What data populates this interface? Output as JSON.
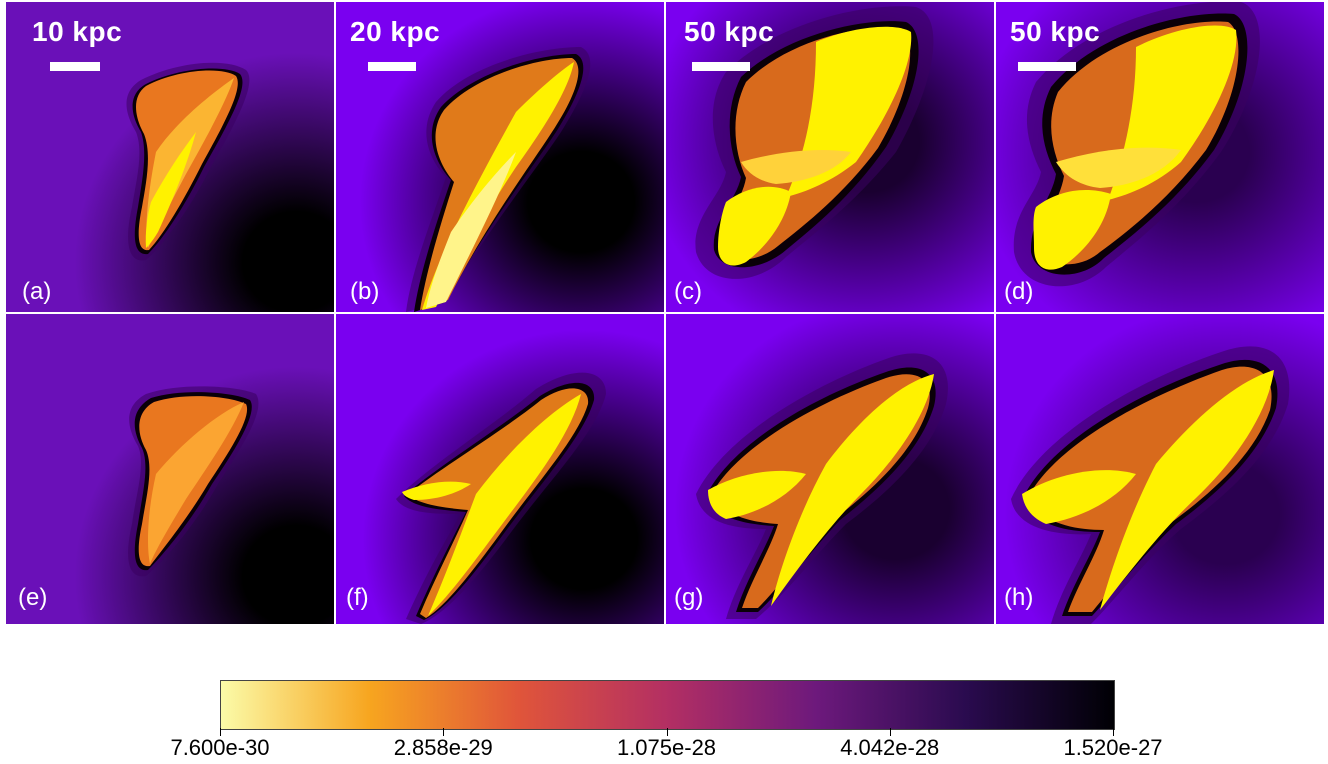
{
  "panels": [
    {
      "label": "(a)",
      "scale_label": "10 kpc",
      "variant": "early"
    },
    {
      "label": "(b)",
      "scale_label": "20 kpc",
      "variant": "mid"
    },
    {
      "label": "(c)",
      "scale_label": "50 kpc",
      "variant": "late"
    },
    {
      "label": "(d)",
      "scale_label": "50 kpc",
      "variant": "latest"
    },
    {
      "label": "(e)",
      "scale_label": "",
      "variant": "early"
    },
    {
      "label": "(f)",
      "scale_label": "",
      "variant": "mid"
    },
    {
      "label": "(g)",
      "scale_label": "",
      "variant": "late"
    },
    {
      "label": "(h)",
      "scale_label": "",
      "variant": "latest"
    }
  ],
  "colorbar": {
    "ticks": [
      "7.600e-30",
      "2.858e-29",
      "1.075e-28",
      "4.042e-28",
      "1.520e-27"
    ],
    "colors": [
      "#fbfba8",
      "#f7a51f",
      "#e0553a",
      "#b32f63",
      "#6d197c",
      "#2a0b4f",
      "#000004"
    ]
  },
  "colors": {
    "background_violet": "#7a00f0",
    "dark_core": "#0a0008",
    "jet_yellow": "#fff200",
    "jet_orange": "#e9771f"
  }
}
